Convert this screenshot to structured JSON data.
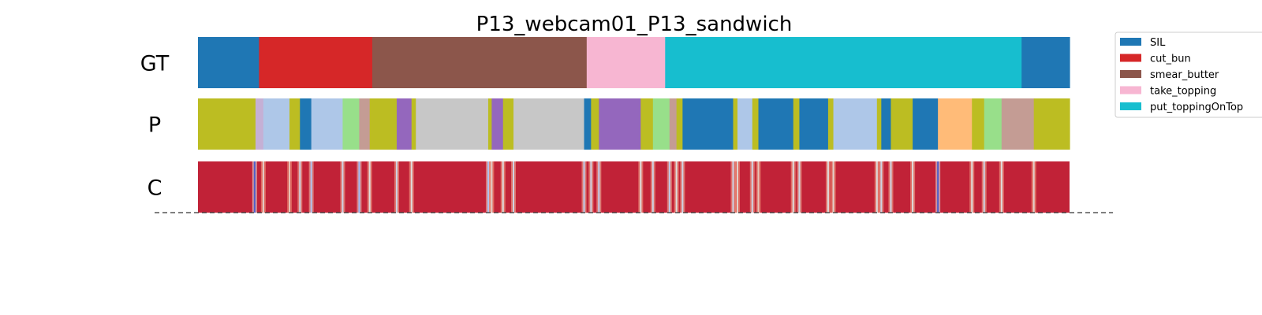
{
  "chart_data": {
    "type": "segmentation_timeline",
    "title": "P13_webcam01_P13_sandwich",
    "xlim": [
      0,
      1
    ],
    "rows": [
      {
        "label": "GT",
        "segments": [
          {
            "start": 0.0,
            "end": 0.07,
            "color": "#1f77b4"
          },
          {
            "start": 0.07,
            "end": 0.2,
            "color": "#d62728"
          },
          {
            "start": 0.2,
            "end": 0.446,
            "color": "#8c564b"
          },
          {
            "start": 0.446,
            "end": 0.536,
            "color": "#f7b6d2"
          },
          {
            "start": 0.536,
            "end": 0.945,
            "color": "#17becf"
          },
          {
            "start": 0.945,
            "end": 1.0,
            "color": "#1f77b4"
          }
        ]
      },
      {
        "label": "P",
        "segments": [
          {
            "start": 0.0,
            "end": 0.066,
            "color": "#bcbd22"
          },
          {
            "start": 0.066,
            "end": 0.075,
            "color": "#c5b0d5"
          },
          {
            "start": 0.075,
            "end": 0.105,
            "color": "#aec7e8"
          },
          {
            "start": 0.105,
            "end": 0.117,
            "color": "#bcbd22"
          },
          {
            "start": 0.117,
            "end": 0.13,
            "color": "#1f77b4"
          },
          {
            "start": 0.13,
            "end": 0.166,
            "color": "#aec7e8"
          },
          {
            "start": 0.166,
            "end": 0.185,
            "color": "#98df8a"
          },
          {
            "start": 0.185,
            "end": 0.197,
            "color": "#c49c94"
          },
          {
            "start": 0.197,
            "end": 0.228,
            "color": "#bcbd22"
          },
          {
            "start": 0.228,
            "end": 0.245,
            "color": "#9467bd"
          },
          {
            "start": 0.245,
            "end": 0.25,
            "color": "#bcbd22"
          },
          {
            "start": 0.25,
            "end": 0.333,
            "color": "#c7c7c7"
          },
          {
            "start": 0.333,
            "end": 0.337,
            "color": "#bcbd22"
          },
          {
            "start": 0.337,
            "end": 0.35,
            "color": "#9467bd"
          },
          {
            "start": 0.35,
            "end": 0.362,
            "color": "#bcbd22"
          },
          {
            "start": 0.362,
            "end": 0.443,
            "color": "#c7c7c7"
          },
          {
            "start": 0.443,
            "end": 0.451,
            "color": "#1f77b4"
          },
          {
            "start": 0.451,
            "end": 0.46,
            "color": "#bcbd22"
          },
          {
            "start": 0.46,
            "end": 0.508,
            "color": "#9467bd"
          },
          {
            "start": 0.508,
            "end": 0.522,
            "color": "#bcbd22"
          },
          {
            "start": 0.522,
            "end": 0.541,
            "color": "#98df8a"
          },
          {
            "start": 0.541,
            "end": 0.549,
            "color": "#c49c94"
          },
          {
            "start": 0.549,
            "end": 0.556,
            "color": "#bcbd22"
          },
          {
            "start": 0.556,
            "end": 0.614,
            "color": "#1f77b4"
          },
          {
            "start": 0.614,
            "end": 0.619,
            "color": "#bcbd22"
          },
          {
            "start": 0.619,
            "end": 0.636,
            "color": "#aec7e8"
          },
          {
            "start": 0.636,
            "end": 0.643,
            "color": "#bcbd22"
          },
          {
            "start": 0.643,
            "end": 0.683,
            "color": "#1f77b4"
          },
          {
            "start": 0.683,
            "end": 0.69,
            "color": "#bcbd22"
          },
          {
            "start": 0.69,
            "end": 0.723,
            "color": "#1f77b4"
          },
          {
            "start": 0.723,
            "end": 0.729,
            "color": "#bcbd22"
          },
          {
            "start": 0.729,
            "end": 0.779,
            "color": "#aec7e8"
          },
          {
            "start": 0.779,
            "end": 0.784,
            "color": "#bcbd22"
          },
          {
            "start": 0.784,
            "end": 0.795,
            "color": "#1f77b4"
          },
          {
            "start": 0.795,
            "end": 0.82,
            "color": "#bcbd22"
          },
          {
            "start": 0.82,
            "end": 0.849,
            "color": "#1f77b4"
          },
          {
            "start": 0.849,
            "end": 0.888,
            "color": "#ffbb78"
          },
          {
            "start": 0.888,
            "end": 0.902,
            "color": "#bcbd22"
          },
          {
            "start": 0.902,
            "end": 0.922,
            "color": "#98df8a"
          },
          {
            "start": 0.922,
            "end": 0.959,
            "color": "#c49c94"
          },
          {
            "start": 0.959,
            "end": 1.0,
            "color": "#bcbd22"
          }
        ]
      },
      {
        "label": "C",
        "colormap": "coolwarm",
        "base_value": 0.95,
        "dips": [
          {
            "pos": 0.065,
            "value": 0.05
          },
          {
            "pos": 0.075,
            "value": 0.55
          },
          {
            "pos": 0.105,
            "value": 0.6
          },
          {
            "pos": 0.117,
            "value": 0.45
          },
          {
            "pos": 0.13,
            "value": 0.35
          },
          {
            "pos": 0.166,
            "value": 0.45
          },
          {
            "pos": 0.185,
            "value": 0.3
          },
          {
            "pos": 0.197,
            "value": 0.5
          },
          {
            "pos": 0.228,
            "value": 0.45
          },
          {
            "pos": 0.245,
            "value": 0.5
          },
          {
            "pos": 0.333,
            "value": 0.35
          },
          {
            "pos": 0.337,
            "value": 0.55
          },
          {
            "pos": 0.35,
            "value": 0.5
          },
          {
            "pos": 0.362,
            "value": 0.45
          },
          {
            "pos": 0.443,
            "value": 0.4
          },
          {
            "pos": 0.451,
            "value": 0.45
          },
          {
            "pos": 0.46,
            "value": 0.4
          },
          {
            "pos": 0.508,
            "value": 0.5
          },
          {
            "pos": 0.522,
            "value": 0.45
          },
          {
            "pos": 0.541,
            "value": 0.4
          },
          {
            "pos": 0.549,
            "value": 0.5
          },
          {
            "pos": 0.556,
            "value": 0.45
          },
          {
            "pos": 0.614,
            "value": 0.45
          },
          {
            "pos": 0.619,
            "value": 0.55
          },
          {
            "pos": 0.636,
            "value": 0.45
          },
          {
            "pos": 0.643,
            "value": 0.6
          },
          {
            "pos": 0.683,
            "value": 0.5
          },
          {
            "pos": 0.69,
            "value": 0.45
          },
          {
            "pos": 0.723,
            "value": 0.5
          },
          {
            "pos": 0.729,
            "value": 0.55
          },
          {
            "pos": 0.779,
            "value": 0.5
          },
          {
            "pos": 0.784,
            "value": 0.45
          },
          {
            "pos": 0.795,
            "value": 0.45
          },
          {
            "pos": 0.82,
            "value": 0.5
          },
          {
            "pos": 0.849,
            "value": 0.05
          },
          {
            "pos": 0.888,
            "value": 0.5
          },
          {
            "pos": 0.902,
            "value": 0.45
          },
          {
            "pos": 0.922,
            "value": 0.5
          },
          {
            "pos": 0.959,
            "value": 0.55
          }
        ]
      }
    ],
    "legend": {
      "placement": "top-right",
      "entries": [
        {
          "label": "SIL",
          "color": "#1f77b4"
        },
        {
          "label": "cut_bun",
          "color": "#d62728"
        },
        {
          "label": "smear_butter",
          "color": "#8c564b"
        },
        {
          "label": "take_topping",
          "color": "#f7b6d2"
        },
        {
          "label": "put_toppingOnTop",
          "color": "#17becf"
        }
      ]
    },
    "baseline": {
      "style": "dashed",
      "color": "#333333"
    }
  }
}
